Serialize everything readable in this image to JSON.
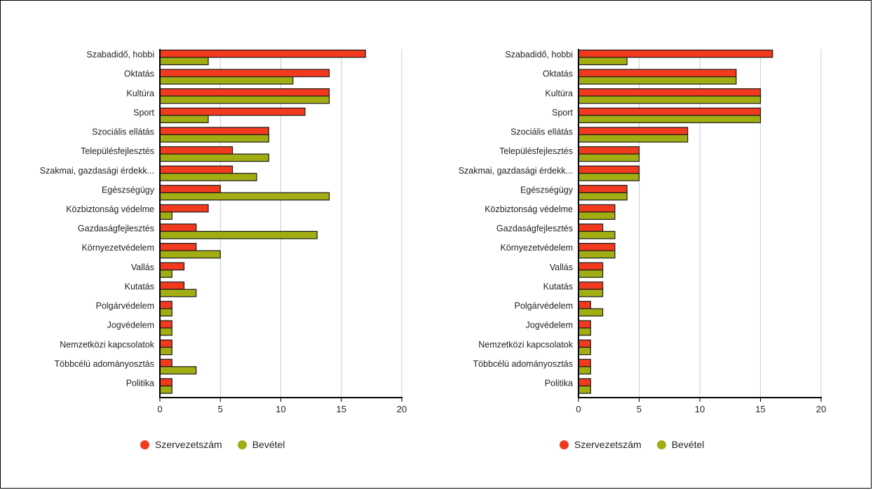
{
  "colors": {
    "series1": "#f23a1e",
    "series2": "#a1ad13",
    "gridline": "#cccccc",
    "axis": "#000000"
  },
  "chart_data": [
    {
      "type": "bar",
      "orientation": "horizontal",
      "categories": [
        "Szabadidő, hobbi",
        "Oktatás",
        "Kultúra",
        "Sport",
        "Szociális ellátás",
        "Településfejlesztés",
        "Szakmai, gazdasági érdekk...",
        "Egészségügy",
        "Közbiztonság védelme",
        "Gazdaságfejlesztés",
        "Környezetvédelem",
        "Vallás",
        "Kutatás",
        "Polgárvédelem",
        "Jogvédelem",
        "Nemzetközi kapcsolatok",
        "Többcélú adományosztás",
        "Politika"
      ],
      "series": [
        {
          "name": "Szervezetszám",
          "values": [
            17,
            14,
            14,
            12,
            9,
            6,
            6,
            5,
            4,
            3,
            3,
            2,
            2,
            1,
            1,
            1,
            1,
            1
          ]
        },
        {
          "name": "Bevétel",
          "values": [
            4,
            11,
            14,
            4,
            9,
            9,
            8,
            14,
            1,
            13,
            5,
            1,
            3,
            1,
            1,
            1,
            3,
            1
          ]
        }
      ],
      "xlim": [
        0,
        20
      ],
      "xticks": [
        0,
        5,
        10,
        15,
        20
      ],
      "grid": "vertical",
      "legend_position": "bottom-left"
    },
    {
      "type": "bar",
      "orientation": "horizontal",
      "categories": [
        "Szabadidő, hobbi",
        "Oktatás",
        "Kultúra",
        "Sport",
        "Szociális ellátás",
        "Településfejlesztés",
        "Szakmai, gazdasági érdekk...",
        "Egészségügy",
        "Közbiztonság védelme",
        "Gazdaságfejlesztés",
        "Környezetvédelem",
        "Vallás",
        "Kutatás",
        "Polgárvédelem",
        "Jogvédelem",
        "Nemzetközi kapcsolatok",
        "Többcélú adományosztás",
        "Politika"
      ],
      "series": [
        {
          "name": "Szervezetszám",
          "values": [
            16,
            13,
            15,
            15,
            9,
            5,
            5,
            4,
            3,
            2,
            3,
            2,
            2,
            1,
            1,
            1,
            1,
            1
          ]
        },
        {
          "name": "Bevétel",
          "values": [
            4,
            13,
            15,
            15,
            9,
            5,
            5,
            4,
            3,
            3,
            3,
            2,
            2,
            2,
            1,
            1,
            1,
            1
          ]
        }
      ],
      "xlim": [
        0,
        20
      ],
      "xticks": [
        0,
        5,
        10,
        15,
        20
      ],
      "grid": "vertical",
      "legend_position": "bottom-left"
    }
  ]
}
